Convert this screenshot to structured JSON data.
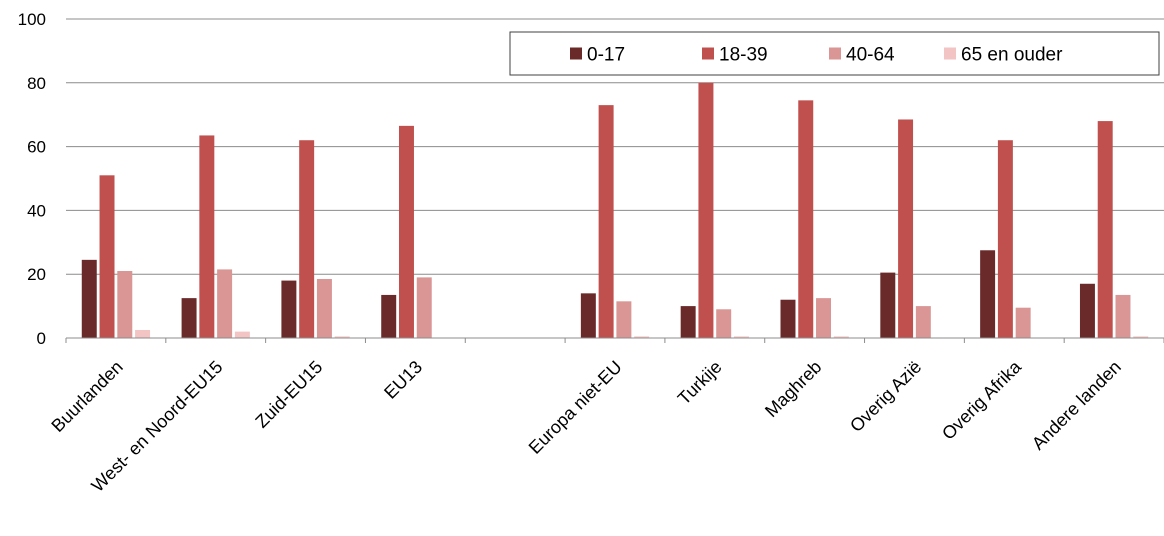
{
  "chart_data": {
    "type": "bar",
    "categories": [
      "Buurlanden",
      "West- en Noord-EU15",
      "Zuid-EU15",
      "EU13",
      "",
      "Europa niet-EU",
      "Turkije",
      "Maghreb",
      "Overig Azië",
      "Overig Afrika",
      "Andere landen"
    ],
    "series": [
      {
        "name": "0-17",
        "color": "#6b2a2a",
        "values": [
          24.5,
          12.5,
          18,
          13.5,
          null,
          14,
          10,
          12,
          20.5,
          27.5,
          17
        ]
      },
      {
        "name": "18-39",
        "color": "#c0504d",
        "values": [
          51,
          63.5,
          62,
          66.5,
          null,
          73,
          80,
          74.5,
          68.5,
          62,
          68
        ]
      },
      {
        "name": "40-64",
        "color": "#d99694",
        "values": [
          21,
          21.5,
          18.5,
          19,
          null,
          11.5,
          9,
          12.5,
          10,
          9.5,
          13.5
        ]
      },
      {
        "name": "65 en ouder",
        "color": "#f2c4c3",
        "values": [
          2.5,
          2,
          0.5,
          0,
          null,
          0.5,
          0.5,
          0.5,
          0,
          0,
          0.5
        ]
      }
    ],
    "ylim": [
      0,
      100
    ],
    "yticks": [
      0,
      20,
      40,
      60,
      80,
      100
    ],
    "ytick_labels": [
      "0",
      "20",
      "40",
      "60",
      "80",
      "100"
    ],
    "grid": true,
    "legend_position": "top-right",
    "title": "",
    "xlabel": "",
    "ylabel": ""
  }
}
